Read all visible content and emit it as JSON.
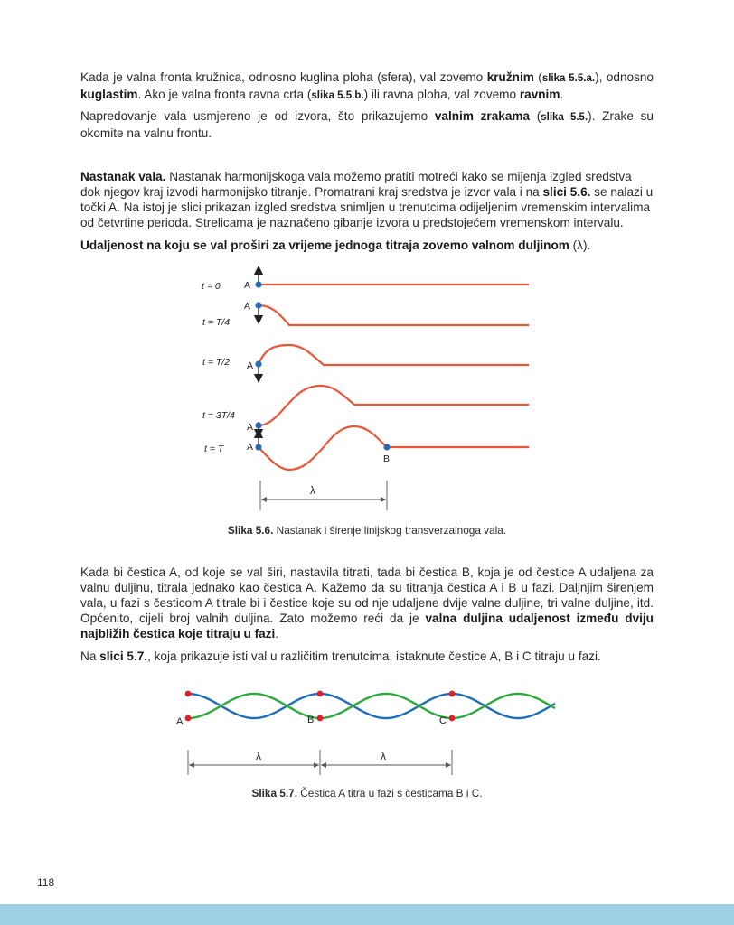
{
  "p1": {
    "t1": "Kada je valna fronta kružnica, odnosno kuglina ploha (sfera), val zovemo ",
    "b1": "kružnim",
    "t2": " (",
    "r1": "slika 5.5.a.",
    "t3": "), odnosno ",
    "b2": "kuglastim",
    "t4": ". Ako je valna fronta ravna crta (",
    "r2": "slika 5.5.b.",
    "t5": ") ili ravna ploha, val zovemo ",
    "b3": "ravnim",
    "t6": "."
  },
  "p2": {
    "t1": "Napredovanje vala usmjereno je od izvora, što prikazujemo ",
    "b1": "valnim zrakama",
    "t2": " (",
    "r1": "slika 5.5.",
    "t3": "). Zrake su okomite na valnu frontu."
  },
  "p3": {
    "b1": "Nastanak vala.",
    "t1": " Nastanak harmonijskoga vala možemo pratiti motreći kako se mijenja izgled sredstva dok njegov kraj izvodi harmonijsko titranje. Promatrani kraj sredstva je izvor vala i na ",
    "b2": "slici 5.6.",
    "t2": " se nalazi u točki A. Na istoj je slici prikazan izgled sredstva snimljen u trenutcima odijeljenim vremenskim intervalima od četvrtine perioda. Strelicama je naznačeno gibanje izvora u predstojećem vremenskom intervalu."
  },
  "p4": {
    "b1": "Udaljenost na koju se val proširi za vrijeme jednoga titraja zovemo valnom duljinom",
    "t1": " (λ)."
  },
  "fig56": {
    "rows": [
      {
        "time": "t = 0"
      },
      {
        "time": "t = T/4"
      },
      {
        "time": "t = T/2"
      },
      {
        "time": "t = 3T/4"
      },
      {
        "time": "t = T"
      }
    ],
    "point_a": "A",
    "point_b": "B",
    "lambda": "λ",
    "caption_label": "Slika 5.6.",
    "caption_text": " Nastanak i širenje linijskog transverzalnoga vala.",
    "colors": {
      "wave": "#e8573a",
      "point": "#2a6db5",
      "arrow": "#222222"
    }
  },
  "p5": {
    "t1": "Kada bi čestica ",
    "a1": "A",
    "t2": ", od koje se val širi, nastavila titrati, tada bi čestica ",
    "a2": "B",
    "t3": ", koja je od čestice ",
    "a3": "A",
    "t4": " udaljena za valnu duljinu, titrala jednako kao čestica ",
    "a4": "A",
    "t5": ". Kažemo da su titranja čestica ",
    "a5": "A",
    "t6": " i ",
    "a6": "B",
    "t7": " u fazi. Daljnjim širenjem vala, u fazi s česticom ",
    "a7": "A",
    "t8": " titrale bi i čestice koje su od nje udaljene dvije valne duljine, tri valne duljine, itd. Općenito, cijeli broj valnih duljina. Zato možemo reći da je ",
    "b1": "valna duljina udaljenost između dviju najbližih čestica koje titraju u fazi",
    "t9": "."
  },
  "p6": {
    "t1": "Na ",
    "b1": "slici 5.7.",
    "t2": ", koja prikazuje isti val u različitim trenutcima, istaknute čestice ",
    "a1": "A",
    "t3": ", ",
    "a2": "B",
    "t4": " i ",
    "a3": "C",
    "t5": " titraju u fazi."
  },
  "fig57": {
    "labels": [
      "A",
      "B",
      "C"
    ],
    "lambda": "λ",
    "caption_label": "Slika 5.7.",
    "caption_text": " Čestica A titra u fazi s česticama B i C.",
    "colors": {
      "wave1": "#1f6fb8",
      "wave2": "#2eaa3e",
      "point": "#e0202a"
    }
  },
  "page_number": "118",
  "colors": {
    "footer": "#9fcfe2"
  }
}
